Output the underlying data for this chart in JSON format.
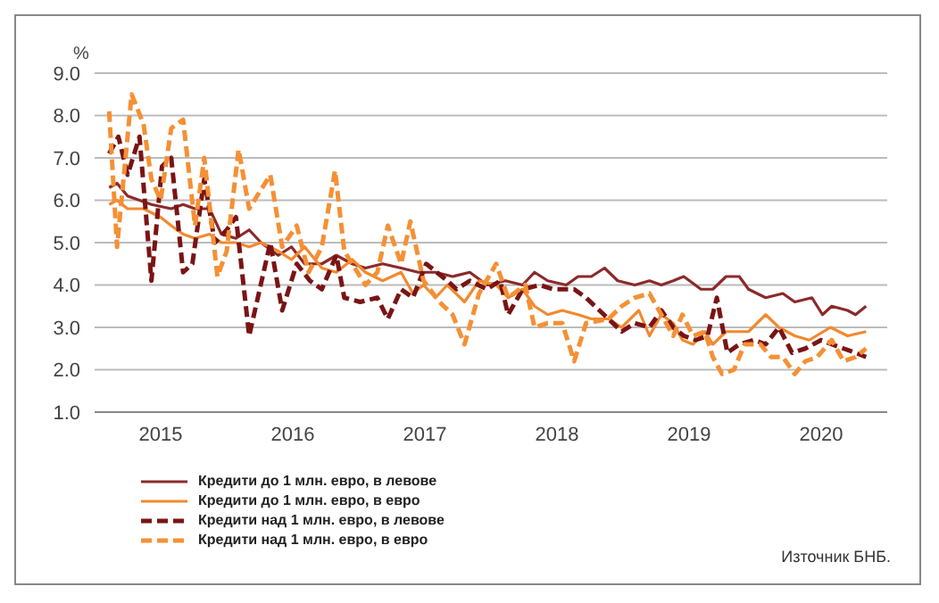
{
  "chart_data": {
    "type": "line",
    "ylabel": "%",
    "xlim": [
      2014.5,
      2020.5
    ],
    "xticks": [
      2015,
      2016,
      2017,
      2018,
      2019,
      2020
    ],
    "ylim": [
      1,
      9
    ],
    "yticks": [
      {
        "value": 1,
        "label": "1.0"
      },
      {
        "value": 2,
        "label": "2.0"
      },
      {
        "value": 3,
        "label": "3.0"
      },
      {
        "value": 4,
        "label": "4.0"
      },
      {
        "value": 5,
        "label": "5.0"
      },
      {
        "value": 6,
        "label": "6.0"
      },
      {
        "value": 7,
        "label": "7.0"
      },
      {
        "value": 8,
        "label": "8.0"
      },
      {
        "value": 9,
        "label": "9.0"
      }
    ],
    "grid": "y",
    "legend": "bottom",
    "marker": "none",
    "annotations": [
      "Източник БНБ."
    ],
    "series": [
      {
        "name": "Кредити до 1 млн. евро, в левове",
        "color": "#8c2a2a",
        "line_style": "solid",
        "x": [
          2014.61,
          2014.67,
          2014.75,
          2014.84,
          2014.93,
          2015.08,
          2015.17,
          2015.26,
          2015.37,
          2015.46,
          2015.57,
          2015.67,
          2015.76,
          2015.89,
          2015.99,
          2016.09,
          2016.22,
          2016.33,
          2016.45,
          2016.55,
          2016.68,
          2016.82,
          2016.95,
          2017.08,
          2017.21,
          2017.34,
          2017.47,
          2017.61,
          2017.74,
          2017.83,
          2017.93,
          2018.07,
          2018.16,
          2018.26,
          2018.36,
          2018.46,
          2018.59,
          2018.7,
          2018.79,
          2018.88,
          2018.96,
          2019.09,
          2019.18,
          2019.28,
          2019.38,
          2019.45,
          2019.58,
          2019.71,
          2019.8,
          2019.93,
          2020.01,
          2020.08,
          2020.2,
          2020.26,
          2020.34
        ],
        "values": [
          6.3,
          6.4,
          6.1,
          6.0,
          5.9,
          5.8,
          5.9,
          5.8,
          5.8,
          5.2,
          5.1,
          5.3,
          5.0,
          4.7,
          4.9,
          4.5,
          4.5,
          4.7,
          4.5,
          4.4,
          4.5,
          4.4,
          4.3,
          4.3,
          4.2,
          4.3,
          4.0,
          4.1,
          4.0,
          4.3,
          4.1,
          4.0,
          4.2,
          4.2,
          4.4,
          4.1,
          4.0,
          4.1,
          4.0,
          4.1,
          4.2,
          3.9,
          3.9,
          4.2,
          4.2,
          3.9,
          3.7,
          3.8,
          3.6,
          3.7,
          3.3,
          3.5,
          3.4,
          3.3,
          3.5
        ]
      },
      {
        "name": "Кредити до 1 млн. евро, в евро",
        "color": "#f2892f",
        "line_style": "solid",
        "x": [
          2014.61,
          2014.67,
          2014.75,
          2014.87,
          2015.0,
          2015.08,
          2015.17,
          2015.26,
          2015.37,
          2015.46,
          2015.57,
          2015.67,
          2015.76,
          2015.89,
          2015.99,
          2016.09,
          2016.22,
          2016.33,
          2016.45,
          2016.55,
          2016.68,
          2016.82,
          2016.91,
          2016.99,
          2017.08,
          2017.17,
          2017.3,
          2017.41,
          2017.54,
          2017.63,
          2017.74,
          2017.83,
          2017.93,
          2018.04,
          2018.16,
          2018.26,
          2018.39,
          2018.49,
          2018.62,
          2018.7,
          2018.79,
          2018.88,
          2018.95,
          2019.03,
          2019.12,
          2019.18,
          2019.28,
          2019.45,
          2019.58,
          2019.68,
          2019.8,
          2019.91,
          2020.07,
          2020.2,
          2020.34
        ],
        "values": [
          5.9,
          6.0,
          5.8,
          5.8,
          5.6,
          5.4,
          5.2,
          5.1,
          5.2,
          5.0,
          5.0,
          4.9,
          5.0,
          4.8,
          4.6,
          4.9,
          4.4,
          4.3,
          4.6,
          4.3,
          4.1,
          4.3,
          3.8,
          4.0,
          3.7,
          4.0,
          3.6,
          4.1,
          4.0,
          3.7,
          3.9,
          3.5,
          3.3,
          3.4,
          3.3,
          3.2,
          3.2,
          3.0,
          3.4,
          2.8,
          3.3,
          3.1,
          2.7,
          2.6,
          2.9,
          2.6,
          2.9,
          2.9,
          3.3,
          3.0,
          2.8,
          2.7,
          3.0,
          2.8,
          2.9
        ]
      },
      {
        "name": "Кредити над 1 млн. евро, в левове",
        "color": "#7a1414",
        "line_style": "dashed",
        "x": [
          2014.61,
          2014.68,
          2014.75,
          2014.84,
          2014.93,
          2015.01,
          2015.08,
          2015.17,
          2015.24,
          2015.33,
          2015.41,
          2015.5,
          2015.57,
          2015.67,
          2015.83,
          2015.92,
          2016.03,
          2016.13,
          2016.22,
          2016.33,
          2016.39,
          2016.51,
          2016.64,
          2016.72,
          2016.82,
          2016.91,
          2017.01,
          2017.17,
          2017.24,
          2017.34,
          2017.47,
          2017.57,
          2017.63,
          2017.74,
          2017.87,
          2017.97,
          2018.13,
          2018.22,
          2018.39,
          2018.49,
          2018.59,
          2018.7,
          2018.79,
          2018.88,
          2018.96,
          2019.05,
          2019.14,
          2019.21,
          2019.29,
          2019.38,
          2019.49,
          2019.58,
          2019.68,
          2019.78,
          2019.88,
          2020.0,
          2020.08,
          2020.17,
          2020.26,
          2020.34
        ],
        "values": [
          7.1,
          7.5,
          6.6,
          7.5,
          4.1,
          6.8,
          7.0,
          4.3,
          4.5,
          6.5,
          5.0,
          5.3,
          5.6,
          2.8,
          5.0,
          3.4,
          4.5,
          4.1,
          3.9,
          4.7,
          3.7,
          3.6,
          3.7,
          3.2,
          3.9,
          3.7,
          4.5,
          4.1,
          3.9,
          4.1,
          3.9,
          4.1,
          3.3,
          3.9,
          4.0,
          3.9,
          3.9,
          3.7,
          3.2,
          2.9,
          3.1,
          3.0,
          3.4,
          3.0,
          2.8,
          2.7,
          2.8,
          3.7,
          2.4,
          2.6,
          2.7,
          2.6,
          3.0,
          2.4,
          2.5,
          2.7,
          2.6,
          2.5,
          2.4,
          2.3
        ]
      },
      {
        "name": "Кредити над 1 млн. евро, в евро",
        "color": "#f59035",
        "line_style": "dashed",
        "x": [
          2014.61,
          2014.67,
          2014.78,
          2014.87,
          2014.93,
          2015.0,
          2015.08,
          2015.17,
          2015.26,
          2015.33,
          2015.43,
          2015.5,
          2015.59,
          2015.67,
          2015.83,
          2015.92,
          2016.03,
          2016.12,
          2016.22,
          2016.32,
          2016.39,
          2016.55,
          2016.64,
          2016.72,
          2016.82,
          2016.89,
          2016.99,
          2017.11,
          2017.21,
          2017.3,
          2017.41,
          2017.54,
          2017.63,
          2017.76,
          2017.83,
          2017.93,
          2018.04,
          2018.13,
          2018.22,
          2018.39,
          2018.49,
          2018.59,
          2018.7,
          2018.79,
          2018.88,
          2018.95,
          2019.03,
          2019.12,
          2019.18,
          2019.25,
          2019.34,
          2019.42,
          2019.54,
          2019.62,
          2019.71,
          2019.8,
          2019.88,
          2019.97,
          2020.08,
          2020.17,
          2020.26,
          2020.34
        ],
        "values": [
          8.1,
          4.9,
          8.5,
          7.8,
          6.5,
          6.0,
          7.7,
          7.9,
          5.4,
          7.0,
          4.2,
          4.8,
          7.2,
          5.8,
          6.6,
          4.9,
          5.4,
          4.3,
          4.9,
          6.7,
          4.8,
          4.0,
          4.3,
          5.4,
          4.5,
          5.5,
          4.1,
          3.6,
          3.3,
          2.6,
          3.8,
          4.5,
          3.7,
          4.0,
          3.0,
          3.1,
          3.1,
          2.2,
          3.1,
          3.2,
          3.5,
          3.7,
          3.8,
          3.3,
          2.8,
          3.3,
          2.8,
          2.9,
          2.3,
          1.9,
          2.0,
          2.6,
          2.6,
          2.3,
          2.3,
          1.9,
          2.2,
          2.3,
          2.7,
          2.2,
          2.3,
          2.5
        ]
      }
    ]
  }
}
